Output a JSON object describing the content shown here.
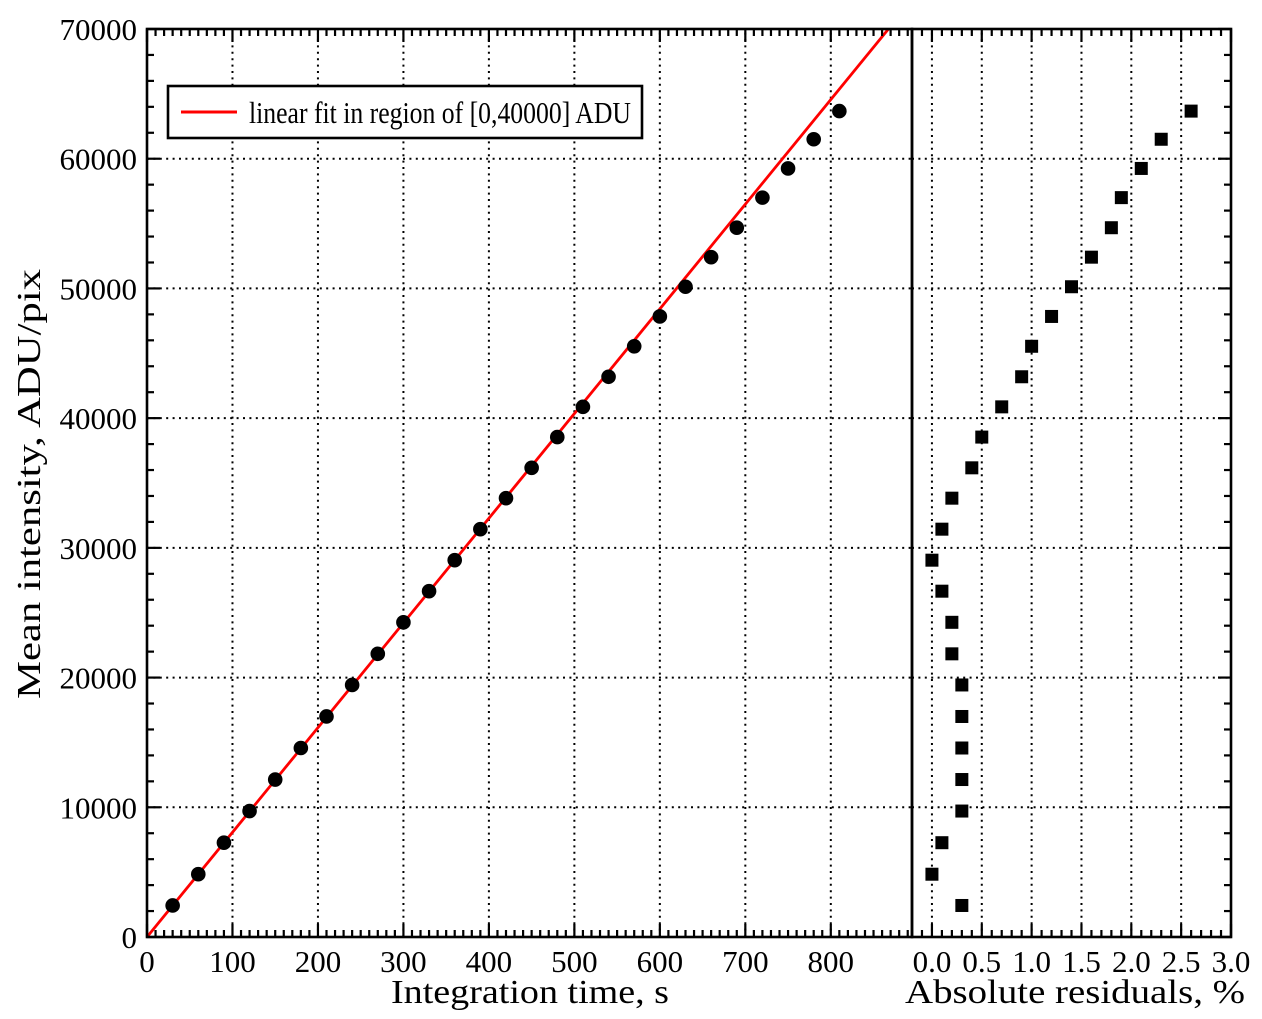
{
  "figure": {
    "background": "#ffffff",
    "foreground": "#000000",
    "fit_line_color": "#ff0000"
  },
  "chart_data": [
    {
      "id": "linearity-panel",
      "type": "scatter",
      "title": "",
      "xlabel": "Integration time, s",
      "ylabel": "Mean intensity, ADU/pix",
      "xlim": [
        0,
        895
      ],
      "ylim": [
        0,
        70000
      ],
      "grid": {
        "style": "dotted",
        "x_values": [
          100,
          200,
          300,
          400,
          500,
          600,
          700,
          800
        ],
        "y_values": [
          10000,
          20000,
          30000,
          40000,
          50000,
          60000
        ]
      },
      "x_ticks": {
        "values": [
          0,
          100,
          200,
          300,
          400,
          500,
          600,
          700,
          800
        ],
        "labels": [
          "0",
          "100",
          "200",
          "300",
          "400",
          "500",
          "600",
          "700",
          "800"
        ],
        "minor_step": 10
      },
      "y_ticks": {
        "values": [
          0,
          10000,
          20000,
          30000,
          40000,
          50000,
          60000,
          70000
        ],
        "labels": [
          "0",
          "10000",
          "20000",
          "30000",
          "40000",
          "50000",
          "60000",
          "70000"
        ],
        "minor_step": 2000
      },
      "legend": {
        "position": "top-left",
        "entries": [
          {
            "label": "linear fit in region of [0,40000] ADU",
            "type": "line",
            "color": "#ff0000"
          }
        ]
      },
      "series": [
        {
          "name": "measured mean intensity",
          "marker": "circle",
          "color": "#000000",
          "x": [
            30,
            60,
            90,
            120,
            150,
            180,
            210,
            240,
            270,
            300,
            330,
            360,
            390,
            420,
            450,
            480,
            510,
            540,
            570,
            600,
            630,
            660,
            690,
            720,
            750,
            780,
            810
          ],
          "y": [
            2430,
            4840,
            7270,
            9710,
            12140,
            14570,
            17000,
            19430,
            21830,
            24260,
            26660,
            29050,
            31440,
            33830,
            36170,
            38540,
            40870,
            43190,
            45540,
            47840,
            50130,
            52410,
            54680,
            57000,
            59250,
            61500,
            63670
          ]
        },
        {
          "name": "linear fit in region of [0,40000] ADU",
          "type": "line",
          "color": "#ff0000",
          "slope_adu_per_s": 80.7,
          "intercept": 0,
          "fit_region_adu": [
            0,
            40000
          ]
        }
      ]
    },
    {
      "id": "residuals-panel",
      "type": "scatter",
      "title": "",
      "xlabel": "Absolute residuals, %",
      "ylabel": "",
      "xlim": [
        -0.2,
        3.0
      ],
      "ylim": [
        0,
        70000
      ],
      "grid": {
        "style": "dotted",
        "x_values": [
          0.0,
          0.5,
          1.0,
          1.5,
          2.0,
          2.5
        ],
        "y_values": [
          10000,
          20000,
          30000,
          40000,
          50000,
          60000
        ]
      },
      "x_ticks": {
        "values": [
          0.0,
          0.5,
          1.0,
          1.5,
          2.0,
          2.5,
          3.0
        ],
        "labels": [
          "0.0",
          "0.5",
          "1.0",
          "1.5",
          "2.0",
          "2.5",
          "3.0"
        ],
        "minor_step": 0.1
      },
      "y_ticks": {
        "values": [
          0,
          10000,
          20000,
          30000,
          40000,
          50000,
          60000,
          70000
        ],
        "labels": [],
        "minor_step": 2000,
        "side": "right"
      },
      "series": [
        {
          "name": "absolute residuals",
          "marker": "square",
          "color": "#000000",
          "x": [
            0.3,
            0.0,
            0.1,
            0.3,
            0.3,
            0.3,
            0.3,
            0.3,
            0.2,
            0.2,
            0.1,
            0.0,
            0.1,
            0.2,
            0.4,
            0.5,
            0.7,
            0.9,
            1.0,
            1.2,
            1.4,
            1.6,
            1.8,
            1.9,
            2.1,
            2.3,
            2.6
          ],
          "y": [
            2430,
            4840,
            7270,
            9710,
            12140,
            14570,
            17000,
            19430,
            21830,
            24260,
            26660,
            29050,
            31440,
            33830,
            36170,
            38540,
            40870,
            43190,
            45540,
            47840,
            50130,
            52410,
            54680,
            57000,
            59250,
            61500,
            63670
          ]
        }
      ]
    }
  ]
}
